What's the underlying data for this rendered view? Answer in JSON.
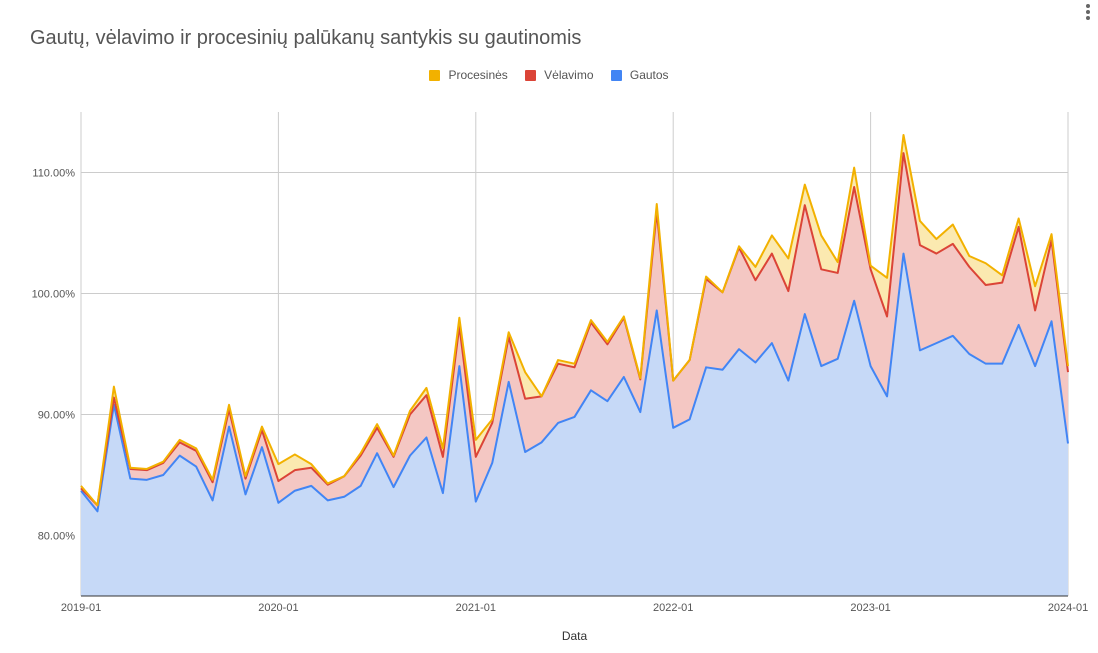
{
  "chart_data": {
    "type": "area",
    "stacked": true,
    "title": "Gautų, vėlavimo ir procesinių palūkanų santykis su gautinomis",
    "xlabel": "Data",
    "ylabel": "",
    "ylim": [
      75,
      115
    ],
    "y_ticks": [
      "80.00%",
      "90.00%",
      "100.00%",
      "110.00%"
    ],
    "x_ticks": [
      "2019-01",
      "2020-01",
      "2021-01",
      "2022-01",
      "2023-01",
      "2024-01"
    ],
    "legend_position": "top",
    "grid": true,
    "x": [
      "2019-01",
      "2019-02",
      "2019-03",
      "2019-04",
      "2019-05",
      "2019-06",
      "2019-07",
      "2019-08",
      "2019-09",
      "2019-10",
      "2019-11",
      "2019-12",
      "2020-01",
      "2020-02",
      "2020-03",
      "2020-04",
      "2020-05",
      "2020-06",
      "2020-07",
      "2020-08",
      "2020-09",
      "2020-10",
      "2020-11",
      "2020-12",
      "2021-01",
      "2021-02",
      "2021-03",
      "2021-04",
      "2021-05",
      "2021-06",
      "2021-07",
      "2021-08",
      "2021-09",
      "2021-10",
      "2021-11",
      "2021-12",
      "2022-01",
      "2022-02",
      "2022-03",
      "2022-04",
      "2022-05",
      "2022-06",
      "2022-07",
      "2022-08",
      "2022-09",
      "2022-10",
      "2022-11",
      "2022-12",
      "2023-01",
      "2023-02",
      "2023-03",
      "2023-04",
      "2023-05",
      "2023-06",
      "2023-07",
      "2023-08",
      "2023-09",
      "2023-10",
      "2023-11",
      "2023-12",
      "2024-01"
    ],
    "series": [
      {
        "name": "Procesinės",
        "color": "#f2b100",
        "fill": "#fbe9b0",
        "cumulative": [
          84.1,
          82.5,
          92.3,
          85.6,
          85.5,
          86.1,
          87.9,
          87.2,
          84.6,
          90.8,
          84.9,
          89.0,
          85.9,
          86.7,
          85.9,
          84.3,
          84.9,
          86.8,
          89.2,
          86.6,
          90.3,
          92.2,
          87.2,
          98.0,
          87.9,
          89.6,
          96.8,
          93.5,
          91.5,
          94.5,
          94.2,
          97.8,
          96.0,
          98.1,
          93.0,
          107.4,
          92.8,
          94.5,
          101.4,
          100.1,
          103.9,
          102.2,
          104.8,
          102.9,
          109.0,
          104.8,
          102.6,
          110.4,
          102.3,
          101.3,
          113.1,
          106.0,
          104.5,
          105.7,
          103.1,
          102.5,
          101.5,
          106.2,
          100.6,
          104.9,
          94.0
        ]
      },
      {
        "name": "Vėlavimo",
        "color": "#db4437",
        "fill": "#f4c7c3",
        "cumulative": [
          83.9,
          82.5,
          91.4,
          85.5,
          85.4,
          86.0,
          87.7,
          87.0,
          84.4,
          90.4,
          84.7,
          88.7,
          84.5,
          85.4,
          85.6,
          84.2,
          84.9,
          86.6,
          88.9,
          86.5,
          90.0,
          91.6,
          86.5,
          97.3,
          86.5,
          89.3,
          96.4,
          91.3,
          91.5,
          94.2,
          93.9,
          97.6,
          95.8,
          98.0,
          92.9,
          106.8,
          92.8,
          94.5,
          101.2,
          100.1,
          103.8,
          101.1,
          103.3,
          100.2,
          107.3,
          102.0,
          101.7,
          108.8,
          102.0,
          98.1,
          111.6,
          104.0,
          103.3,
          104.1,
          102.2,
          100.7,
          100.9,
          105.5,
          98.6,
          104.4,
          93.5
        ]
      },
      {
        "name": "Gautos",
        "color": "#4285f4",
        "fill": "#c6d9f7",
        "values": [
          83.7,
          82.0,
          90.8,
          84.7,
          84.6,
          85.0,
          86.6,
          85.7,
          82.9,
          89.0,
          83.4,
          87.3,
          82.7,
          83.7,
          84.1,
          82.9,
          83.2,
          84.1,
          86.8,
          84.0,
          86.6,
          88.1,
          83.5,
          94.0,
          82.8,
          86.0,
          92.7,
          86.9,
          87.7,
          89.3,
          89.8,
          92.0,
          91.1,
          93.1,
          90.2,
          98.6,
          88.9,
          89.6,
          93.9,
          93.7,
          95.4,
          94.3,
          95.9,
          92.8,
          98.3,
          94.0,
          94.6,
          99.4,
          94.0,
          91.5,
          103.3,
          95.3,
          95.9,
          96.5,
          95.0,
          94.2,
          94.2,
          97.4,
          94.0,
          97.7,
          87.6
        ]
      }
    ]
  }
}
